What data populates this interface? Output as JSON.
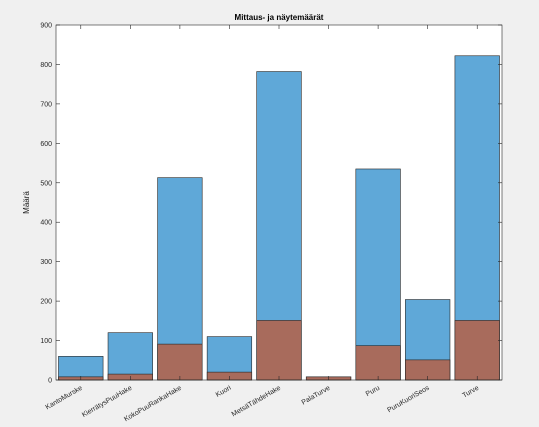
{
  "chart_data": {
    "type": "bar",
    "title": "Mittaus- ja näytemäärät",
    "xlabel": "",
    "ylabel": "Määrä",
    "ylim": [
      0,
      900
    ],
    "yticks": [
      0,
      100,
      200,
      300,
      400,
      500,
      600,
      700,
      800,
      900
    ],
    "grid": false,
    "categories": [
      "KantoMurske",
      "KierrätysPuuHake",
      "KokoPuuRankaHake",
      "Kuori",
      "MetsäTähdeHake",
      "PalaTurve",
      "Puru",
      "PuruKuoriSeos",
      "Turve"
    ],
    "series": [
      {
        "values": [
          60,
          120,
          513,
          110,
          782,
          8,
          535,
          204,
          822
        ],
        "color": "#5fa8d8"
      },
      {
        "values": [
          8,
          15,
          91,
          20,
          151,
          8,
          87,
          51,
          151
        ],
        "color": "#a86b5c"
      }
    ]
  }
}
